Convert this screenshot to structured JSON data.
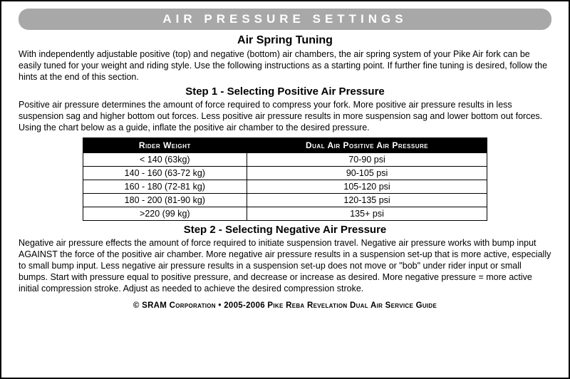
{
  "banner": {
    "text": "AIR PRESSURE SETTINGS"
  },
  "intro": {
    "title": "Air Spring Tuning",
    "text": "With independently adjustable positive (top) and negative (bottom) air chambers, the air spring system of your Pike Air fork can be easily tuned for your weight and riding style. Use the following instructions as a starting point. If further fine tuning is desired, follow the hints at the end of this section."
  },
  "step1": {
    "title": "Step 1 - Selecting Positive Air Pressure",
    "text": "Positive air pressure determines the amount of force required to compress your fork. More positive air pressure results in less suspension sag and higher bottom out forces. Less positive air pressure results in more suspension sag and lower bottom out forces. Using the chart below as a guide, inflate the positive air chamber to the desired pressure."
  },
  "table": {
    "columns": [
      "Rider Weight",
      "Dual Air Positive Air Pressure"
    ],
    "rows": [
      [
        "< 140 (63kg)",
        "70-90 psi"
      ],
      [
        "140 - 160 (63-72 kg)",
        "90-105 psi"
      ],
      [
        "160 - 180 (72-81 kg)",
        "105-120 psi"
      ],
      [
        "180 - 200 (81-90 kg)",
        "120-135 psi"
      ],
      [
        ">220 (99 kg)",
        "135+ psi"
      ]
    ],
    "col_widths": [
      "50%",
      "50%"
    ],
    "header_bg": "#000000",
    "header_fg": "#ffffff",
    "border_color": "#000000"
  },
  "step2": {
    "title": "Step 2 - Selecting Negative Air Pressure",
    "text": "Negative air pressure effects the amount of force required to initiate suspension travel. Negative air pressure works with bump input AGAINST the force of the positive air chamber. More negative air pressure results in a suspension set-up that is more active, especially to small bump input. Less negative air pressure results in a suspension set-up does not move or \"bob\" under rider input or small bumps. Start with pressure equal to positive pressure, and decrease or increase as desired.  More negative pressure = more active initial compression stroke.  Adjust as needed to achieve the desired compression stroke."
  },
  "footer": {
    "text": "© SRAM Corporation • 2005-2006 Pike Reba Revelation Dual Air Service Guide"
  }
}
